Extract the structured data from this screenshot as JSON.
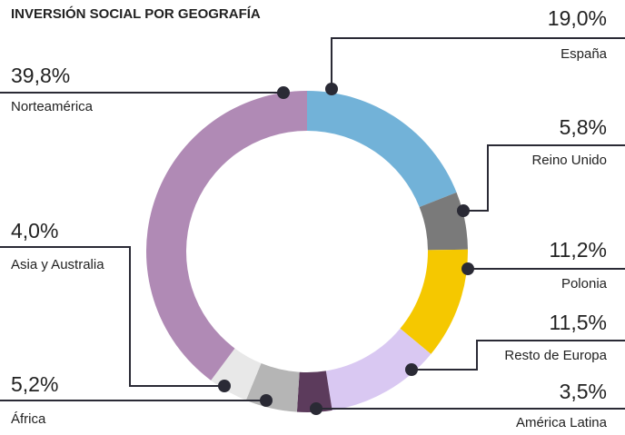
{
  "chart_data": {
    "type": "donut",
    "title": "INVERSIÓN SOCIAL POR GEOGRAFÍA",
    "categories": [
      "España",
      "Reino Unido",
      "Polonia",
      "Resto de Europa",
      "América Latina",
      "África",
      "Asia y Australia",
      "Norteamérica"
    ],
    "values": [
      19.0,
      5.8,
      11.2,
      11.5,
      3.5,
      5.2,
      4.0,
      39.8
    ],
    "value_labels": [
      "19,0%",
      "5,8%",
      "11,2%",
      "11,5%",
      "3,5%",
      "5,2%",
      "4,0%",
      "39,8%"
    ],
    "colors": [
      "#72b2d8",
      "#7a7a7a",
      "#f5c800",
      "#d9c8f2",
      "#5c3b5c",
      "#b5b5b5",
      "#e8e8e8",
      "#b08ab5"
    ]
  }
}
